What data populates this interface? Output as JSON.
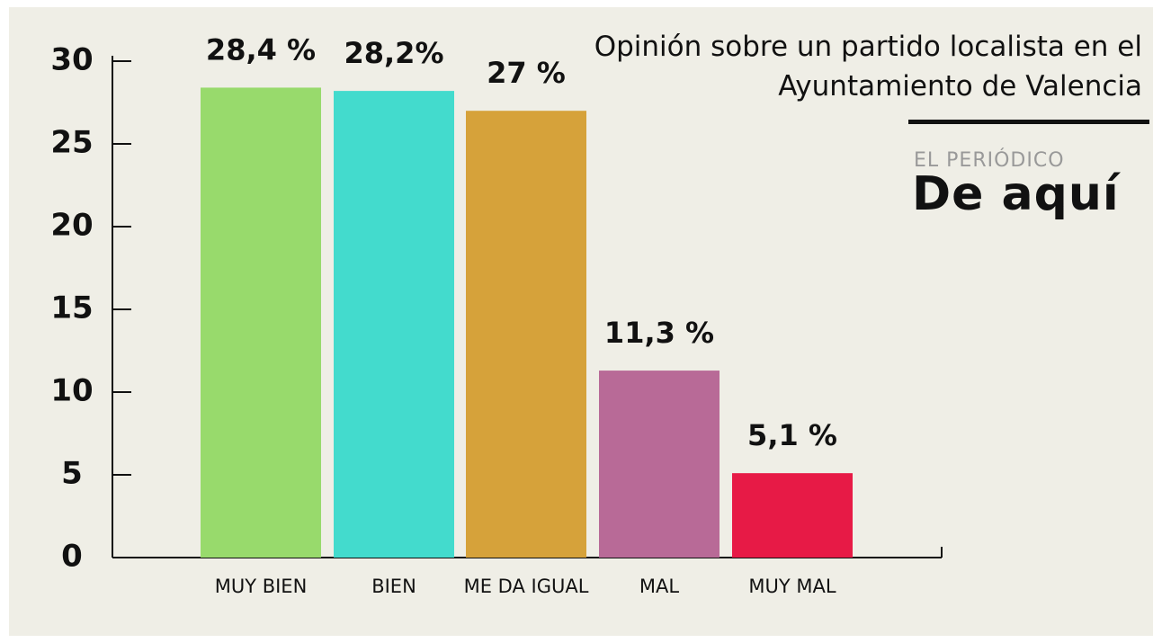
{
  "chart_data": {
    "type": "bar",
    "title": "Opinión sobre un partido localista en el Ayuntamiento de Valencia",
    "categories": [
      "MUY BIEN",
      "BIEN",
      "ME DA IGUAL",
      "MAL",
      "MUY MAL"
    ],
    "values": [
      28.4,
      28.2,
      27,
      11.3,
      5.1
    ],
    "value_labels": [
      "28,4 %",
      "28,2%",
      "27 %",
      "11,3 %",
      "5,1 %"
    ],
    "colors": [
      "#98da6c",
      "#43dbcd",
      "#d6a23a",
      "#b86a97",
      "#e71a46"
    ],
    "ylim": [
      0,
      30
    ],
    "yticks": [
      0,
      5,
      10,
      15,
      20,
      25,
      30
    ],
    "grid": false
  },
  "logo": {
    "top": "EL PERIÓDICO",
    "bottom": "De aquí"
  }
}
